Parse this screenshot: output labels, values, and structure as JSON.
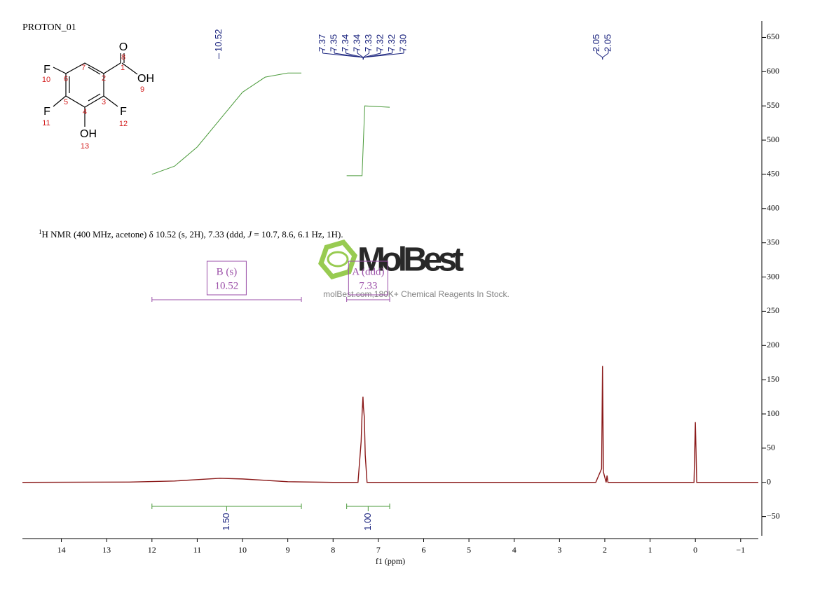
{
  "chart_data": {
    "type": "line",
    "title": "PROTON_01",
    "xlabel": "f1 (ppm)",
    "xlim": [
      14.86,
      -1.39
    ],
    "xticks": [
      14,
      13,
      12,
      11,
      10,
      9,
      8,
      7,
      6,
      5,
      4,
      3,
      2,
      1,
      0,
      {
        "value": -1,
        "label": "−1"
      }
    ],
    "ylim": [
      -78,
      674
    ],
    "yticks": [
      {
        "value": -50,
        "label": "−50"
      },
      0,
      50,
      100,
      150,
      200,
      250,
      300,
      350,
      400,
      450,
      500,
      550,
      600,
      650
    ],
    "series": [
      {
        "name": "spectrum",
        "color": "#8b1a1a",
        "x": [
          14.86,
          12.5,
          11.5,
          11,
          10.5,
          10,
          9.5,
          9,
          8,
          7.45,
          7.38,
          7.36,
          7.34,
          7.33,
          7.31,
          7.29,
          7.25,
          6,
          4,
          2.2,
          2.07,
          2.05,
          2.03,
          1.97,
          1.95,
          1.93,
          1.5,
          0.03,
          0,
          -0.03,
          -1.39
        ],
        "values": [
          0,
          0.5,
          2,
          4,
          6,
          5,
          3,
          1,
          0,
          0,
          60,
          100,
          125,
          110,
          95,
          40,
          0,
          0,
          0,
          0,
          20,
          170,
          15,
          0,
          10,
          0,
          0,
          0,
          88,
          0,
          0
        ]
      },
      {
        "name": "integral-1",
        "color": "#4a9a3a",
        "x": [
          12,
          11.5,
          11,
          10.5,
          10,
          9.5,
          9,
          8.7
        ],
        "values": [
          450,
          462,
          490,
          530,
          570,
          592,
          598,
          598
        ]
      },
      {
        "name": "integral-2",
        "color": "#4a9a3a",
        "x": [
          7.7,
          7.36,
          7.33,
          7.3,
          6.75
        ],
        "values": [
          448,
          448,
          500,
          550,
          548
        ]
      }
    ],
    "peaks": {
      "values": [
        10.52,
        7.37,
        7.35,
        7.34,
        7.34,
        7.33,
        7.32,
        7.32,
        7.3,
        2.05,
        2.05
      ],
      "value_labels": [
        "10.52",
        "7.37",
        "7.35",
        "7.34",
        "7.34",
        "7.33",
        "7.32",
        "7.32",
        "7.30",
        "2.05",
        "2.05"
      ]
    },
    "integrals": {
      "ranges": [
        [
          12,
          8.7
        ],
        [
          7.7,
          6.75
        ]
      ],
      "values": [
        1.5,
        1.0
      ],
      "value_labels": [
        "1.50",
        "1.00"
      ]
    },
    "multiplets": [
      {
        "label": "B (s)",
        "shift": 10.52,
        "range": [
          12,
          8.7
        ]
      },
      {
        "label": "A (ddd)",
        "shift": 7.33,
        "range": [
          7.7,
          6.75
        ]
      }
    ],
    "description": [
      "1",
      "H NMR (400 MHz, acetone) δ 10.52 (s, 2H), 7.33 (ddd, ",
      "J",
      " = 10.7, 8.6, 6.1 Hz, 1H)."
    ],
    "structure": {
      "labels": [
        "O",
        "8",
        "1",
        "OH",
        "9",
        "7",
        "2",
        "6",
        "F",
        "10",
        "5",
        "4",
        "3",
        "F",
        "11",
        "F",
        "12",
        "OH",
        "13"
      ]
    },
    "watermark": {
      "title": "MolBest",
      "subtitle": "molBest.com,180K+ Chemical Reagents In Stock."
    }
  }
}
